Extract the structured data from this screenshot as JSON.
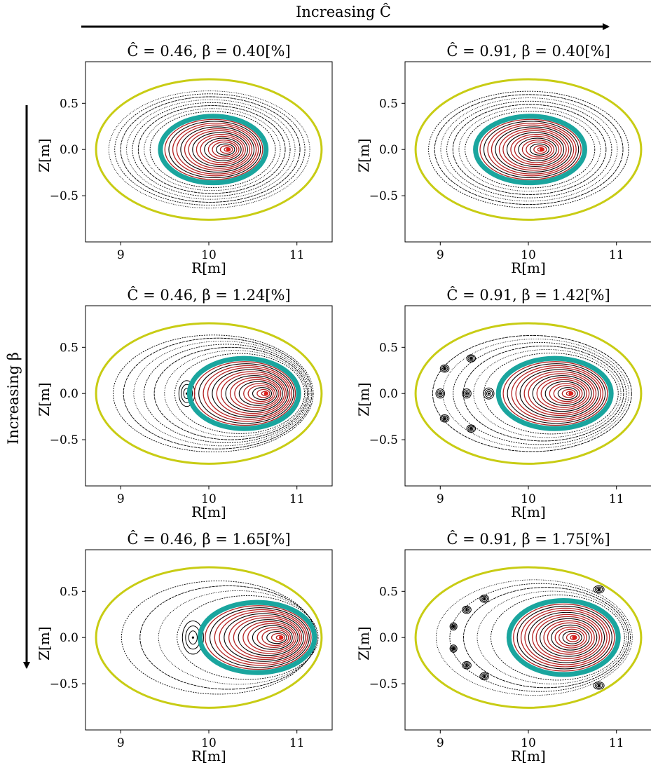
{
  "figure": {
    "top_arrow_label": "Increasing Ĉ",
    "left_arrow_label": "Increasing β"
  },
  "colors": {
    "wall": "#c8cc14",
    "separatrix": "#1aa59e",
    "inner_surfaces": "#b22222",
    "magnetic_axis": "#e0201b",
    "field_lines": "#000000"
  },
  "chart_data": [
    {
      "type": "scatter",
      "title": "Ĉ = 0.46,  β = 0.40[%]",
      "xlabel": "R[m]",
      "ylabel": "Z[m]",
      "xlim": [
        8.6,
        11.4
      ],
      "ylim": [
        -1.0,
        0.95
      ],
      "xticks": [
        "9",
        "10",
        "11"
      ],
      "yticks": [
        "0.5",
        "0.0",
        "−0.5"
      ],
      "xtick_values": [
        9,
        10,
        11
      ],
      "ytick_values": [
        0.5,
        0.0,
        -0.5
      ],
      "wall": {
        "r0": 10.0,
        "a": 1.28,
        "b": 0.76
      },
      "separatrix": {
        "r0": 10.05,
        "a": 0.6,
        "b": 0.36
      },
      "magnetic_axis": {
        "R": 10.22,
        "Z": 0.0
      },
      "outer_surfaces": 8,
      "islands": []
    },
    {
      "type": "scatter",
      "title": "Ĉ = 0.91,  β = 0.40[%]",
      "xlabel": "R[m]",
      "ylabel": "Z[m]",
      "xlim": [
        8.6,
        11.4
      ],
      "ylim": [
        -1.0,
        0.95
      ],
      "xticks": [
        "9",
        "10",
        "11"
      ],
      "yticks": [
        "0.5",
        "0.0",
        "−0.5"
      ],
      "xtick_values": [
        9,
        10,
        11
      ],
      "ytick_values": [
        0.5,
        0.0,
        -0.5
      ],
      "wall": {
        "r0": 10.0,
        "a": 1.28,
        "b": 0.76
      },
      "separatrix": {
        "r0": 10.02,
        "a": 0.62,
        "b": 0.36
      },
      "magnetic_axis": {
        "R": 10.15,
        "Z": 0.0
      },
      "outer_surfaces": 7,
      "islands": []
    },
    {
      "type": "scatter",
      "title": "Ĉ = 0.46,  β = 1.24[%]",
      "xlabel": "R[m]",
      "ylabel": "Z[m]",
      "xlim": [
        8.6,
        11.4
      ],
      "ylim": [
        -1.0,
        0.95
      ],
      "xticks": [
        "9",
        "10",
        "11"
      ],
      "yticks": [
        "0.5",
        "0.0",
        "−0.5"
      ],
      "xtick_values": [
        9,
        10,
        11
      ],
      "ytick_values": [
        0.5,
        0.0,
        -0.5
      ],
      "wall": {
        "r0": 10.0,
        "a": 1.28,
        "b": 0.76
      },
      "separatrix": {
        "r0": 10.4,
        "a": 0.62,
        "b": 0.38
      },
      "magnetic_axis": {
        "R": 10.65,
        "Z": 0.0
      },
      "outer_surfaces": 7,
      "islands": [
        {
          "R": 9.75,
          "Z": 0.0,
          "w": 0.09,
          "h": 0.14
        }
      ]
    },
    {
      "type": "scatter",
      "title": "Ĉ = 0.91,  β = 1.42[%]",
      "xlabel": "R[m]",
      "ylabel": "Z[m]",
      "xlim": [
        8.6,
        11.4
      ],
      "ylim": [
        -1.0,
        0.95
      ],
      "xticks": [
        "9",
        "10",
        "11"
      ],
      "yticks": [
        "0.5",
        "0.0",
        "−0.5"
      ],
      "xtick_values": [
        9,
        10,
        11
      ],
      "ytick_values": [
        0.5,
        0.0,
        -0.5
      ],
      "wall": {
        "r0": 10.0,
        "a": 1.28,
        "b": 0.76
      },
      "separatrix": {
        "r0": 10.3,
        "a": 0.64,
        "b": 0.38
      },
      "magnetic_axis": {
        "R": 10.48,
        "Z": 0.0
      },
      "outer_surfaces": 6,
      "islands": [
        {
          "R": 9.05,
          "Z": 0.27,
          "w": 0.05,
          "h": 0.04
        },
        {
          "R": 9.05,
          "Z": -0.27,
          "w": 0.05,
          "h": 0.04
        },
        {
          "R": 9.35,
          "Z": 0.38,
          "w": 0.05,
          "h": 0.04
        },
        {
          "R": 9.35,
          "Z": -0.38,
          "w": 0.05,
          "h": 0.04
        },
        {
          "R": 9.55,
          "Z": 0.0,
          "w": 0.06,
          "h": 0.06
        },
        {
          "R": 9.3,
          "Z": 0.0,
          "w": 0.05,
          "h": 0.05
        },
        {
          "R": 9.0,
          "Z": 0.0,
          "w": 0.05,
          "h": 0.05
        }
      ]
    },
    {
      "type": "scatter",
      "title": "Ĉ = 0.46,  β = 1.65[%]",
      "xlabel": "R[m]",
      "ylabel": "Z[m]",
      "xlim": [
        8.6,
        11.4
      ],
      "ylim": [
        -1.0,
        0.95
      ],
      "xticks": [
        "9",
        "10",
        "11"
      ],
      "yticks": [
        "0.5",
        "0.0",
        "−0.5"
      ],
      "xtick_values": [
        9,
        10,
        11
      ],
      "ytick_values": [
        0.5,
        0.0,
        -0.5
      ],
      "wall": {
        "r0": 10.0,
        "a": 1.28,
        "b": 0.76
      },
      "separatrix": {
        "r0": 10.55,
        "a": 0.65,
        "b": 0.38
      },
      "magnetic_axis": {
        "R": 10.82,
        "Z": 0.0
      },
      "outer_surfaces": 4,
      "islands": [
        {
          "R": 9.82,
          "Z": 0.0,
          "w": 0.12,
          "h": 0.18
        }
      ]
    },
    {
      "type": "scatter",
      "title": "Ĉ = 0.91,  β = 1.75[%]",
      "xlabel": "R[m]",
      "ylabel": "Z[m]",
      "xlim": [
        8.6,
        11.4
      ],
      "ylim": [
        -1.0,
        0.95
      ],
      "xticks": [
        "9",
        "10",
        "11"
      ],
      "yticks": [
        "0.5",
        "0.0",
        "−0.5"
      ],
      "xtick_values": [
        9,
        10,
        11
      ],
      "ytick_values": [
        0.5,
        0.0,
        -0.5
      ],
      "wall": {
        "r0": 10.0,
        "a": 1.28,
        "b": 0.76
      },
      "separatrix": {
        "r0": 10.4,
        "a": 0.62,
        "b": 0.4
      },
      "magnetic_axis": {
        "R": 10.52,
        "Z": 0.0
      },
      "outer_surfaces": 5,
      "islands": [
        {
          "R": 9.3,
          "Z": 0.3,
          "w": 0.05,
          "h": 0.04
        },
        {
          "R": 9.3,
          "Z": -0.3,
          "w": 0.05,
          "h": 0.04
        },
        {
          "R": 9.5,
          "Z": 0.42,
          "w": 0.05,
          "h": 0.04
        },
        {
          "R": 9.5,
          "Z": -0.42,
          "w": 0.05,
          "h": 0.04
        },
        {
          "R": 9.15,
          "Z": 0.12,
          "w": 0.04,
          "h": 0.04
        },
        {
          "R": 9.15,
          "Z": -0.12,
          "w": 0.04,
          "h": 0.04
        },
        {
          "R": 10.8,
          "Z": 0.52,
          "w": 0.06,
          "h": 0.04
        },
        {
          "R": 10.8,
          "Z": -0.52,
          "w": 0.06,
          "h": 0.04
        }
      ]
    }
  ]
}
